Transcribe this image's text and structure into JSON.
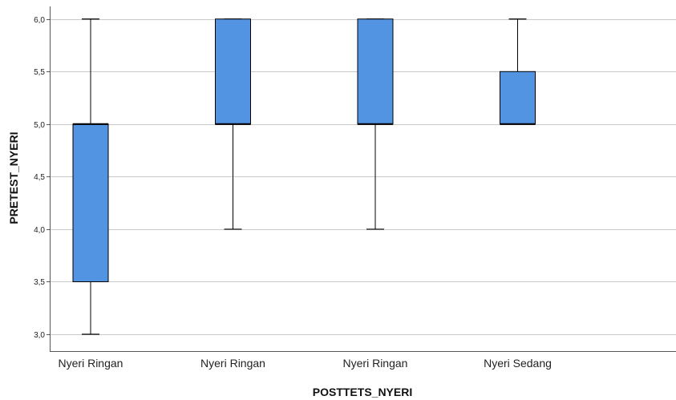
{
  "chart_data": {
    "type": "boxplot",
    "xlabel": "POSTTETS_NYERI",
    "ylabel": "PRETEST_NYERI",
    "categories": [
      "Nyeri Ringan",
      "Nyeri Ringan",
      "Nyeri Ringan",
      "Nyeri Sedang"
    ],
    "boxes": [
      {
        "min": 3.0,
        "q1": 3.5,
        "median": 5.0,
        "q3": 5.0,
        "max": 6.0
      },
      {
        "min": 4.0,
        "q1": 5.0,
        "median": 5.0,
        "q3": 6.0,
        "max": 6.0
      },
      {
        "min": 4.0,
        "q1": 5.0,
        "median": 5.0,
        "q3": 6.0,
        "max": 6.0
      },
      {
        "min": 5.0,
        "q1": 5.0,
        "median": 5.0,
        "q3": 5.5,
        "max": 6.0
      }
    ],
    "yticks": [
      3.0,
      3.5,
      4.0,
      4.5,
      5.0,
      5.5,
      6.0
    ],
    "ytick_labels": [
      "3,0",
      "3,5",
      "4,0",
      "4,5",
      "5,0",
      "5,5",
      "6,0"
    ],
    "ylim": [
      2.84,
      6.12
    ],
    "grid": "horizontal",
    "box_color": "#5294e2",
    "line_color": "#000000",
    "grid_color": "#c9c9c9"
  }
}
